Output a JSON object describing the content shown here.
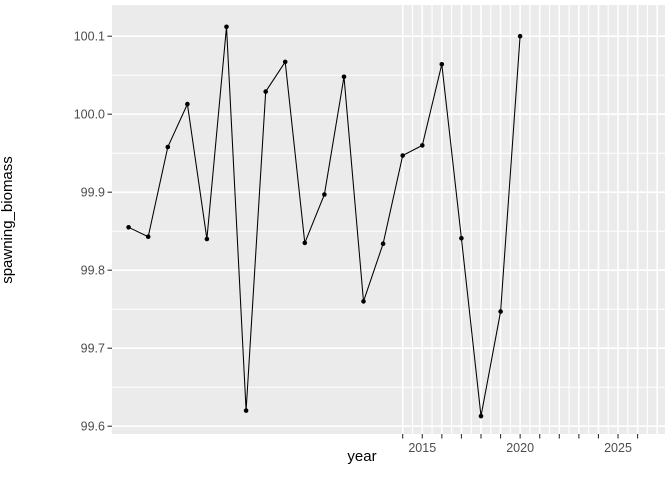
{
  "figure": {
    "background_color": "#FFFFFF",
    "panel_color": "#EBEBEB",
    "grid_color": "#FFFFFF",
    "tick_mark_color": "#333333",
    "tick_label_color": "#4D4D4D",
    "axis_title_color": "#000000",
    "series_color": "#000000"
  },
  "chart_data": {
    "type": "line",
    "title": "",
    "xlabel": "year",
    "ylabel": "spawning_biomass",
    "legend_position": "none",
    "grid": true,
    "marker": "point",
    "x": [
      2000,
      2001,
      2002,
      2003,
      2004,
      2005,
      2006,
      2007,
      2008,
      2009,
      2010,
      2011,
      2012,
      2013,
      2014,
      2015,
      2016,
      2017,
      2018,
      2019,
      2020
    ],
    "series": [
      {
        "name": "spawning_biomass",
        "values": [
          99.855,
          99.843,
          99.958,
          100.013,
          99.84,
          100.112,
          99.62,
          100.029,
          100.067,
          99.835,
          99.897,
          100.048,
          99.76,
          99.834,
          99.947,
          99.96,
          100.064,
          99.841,
          99.613,
          99.747,
          100.1
        ]
      }
    ],
    "xlim": [
      1999.15,
      2027.4
    ],
    "ylim": [
      99.59,
      100.14
    ],
    "x_axis_tick_positions": [
      2014,
      2015,
      2016,
      2017,
      2018,
      2019,
      2020,
      2021,
      2022,
      2023,
      2024,
      2025,
      2026
    ],
    "x_tick_labels": [
      {
        "value": 2015,
        "label": "2015"
      },
      {
        "value": 2020,
        "label": "2020"
      },
      {
        "value": 2025,
        "label": "2025"
      }
    ],
    "x_major_gridlines": [
      2014,
      2015,
      2016,
      2017,
      2018,
      2019,
      2020,
      2021,
      2022,
      2023,
      2024,
      2025,
      2026,
      2027
    ],
    "x_minor_gridlines": [
      2014.5,
      2015.5,
      2016.5,
      2017.5,
      2018.5,
      2019.5,
      2020.5,
      2021.5,
      2022.5,
      2023.5,
      2024.5,
      2025.5,
      2026.5
    ],
    "y_tick_labels": [
      {
        "value": 99.6,
        "label": "99.6"
      },
      {
        "value": 99.7,
        "label": "99.7"
      },
      {
        "value": 99.8,
        "label": "99.8"
      },
      {
        "value": 99.9,
        "label": "99.9"
      },
      {
        "value": 100.0,
        "label": "100.0"
      },
      {
        "value": 100.1,
        "label": "100.1"
      }
    ],
    "y_major_gridlines": [
      99.6,
      99.7,
      99.8,
      99.9,
      100.0,
      100.1
    ],
    "y_minor_gridlines": [
      99.65,
      99.75,
      99.85,
      99.95,
      100.05
    ]
  }
}
